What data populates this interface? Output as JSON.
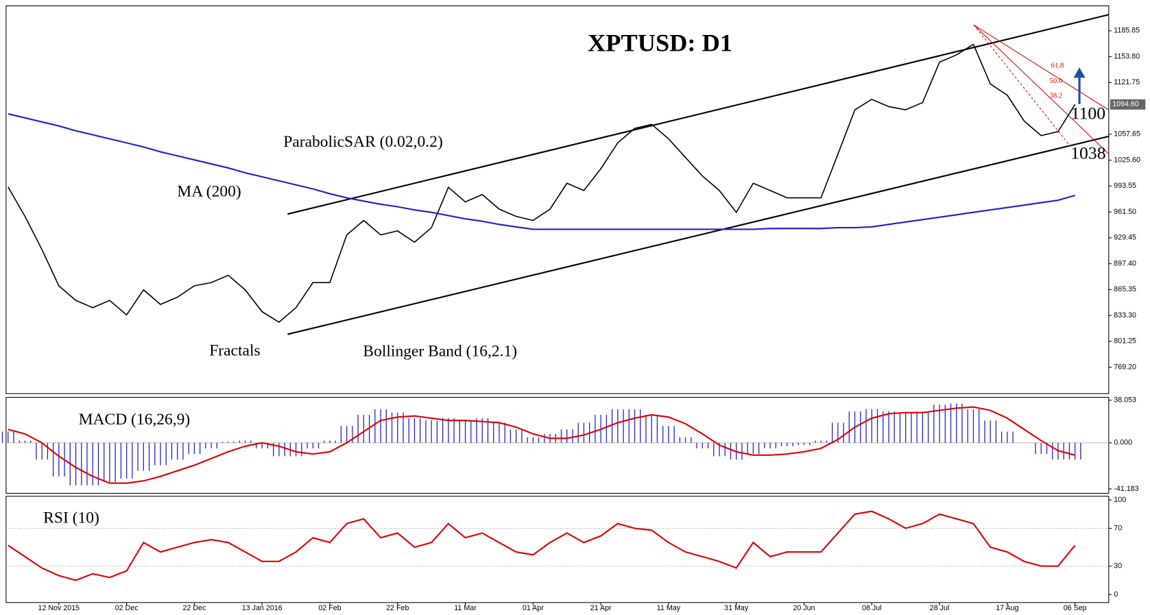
{
  "chart_data": [
    {
      "type": "line",
      "title": "XPTUSD: D1",
      "annotations": [
        "ParabolicSAR (0.02,0.2)",
        "MA (200)",
        "Fractals",
        "Bollinger Band (16,2.1)",
        "1100",
        "1038",
        "61.8",
        "50.0",
        "38.2"
      ],
      "last_price": {
        "value": 1094.6,
        "label": "1094.60"
      },
      "ylim": [
        736.5,
        1216.7
      ],
      "yticks": [
        1185.85,
        {
          "value": 1153.8,
          "label": "1153.80"
        },
        1121.75,
        1057.65,
        {
          "value": 1025.6,
          "label": "1025.60"
        },
        993.55,
        {
          "value": 961.5,
          "label": "961.50"
        },
        929.45,
        {
          "value": 897.4,
          "label": "897.40"
        },
        865.35,
        {
          "value": 833.3,
          "label": "833.30"
        },
        801.25,
        {
          "value": 769.2,
          "label": "769.20"
        }
      ],
      "series": [
        {
          "color": "#000000",
          "values": [
            992.5,
            956,
            915,
            870,
            852,
            843,
            852,
            834,
            865,
            847,
            856,
            870,
            874,
            883,
            865,
            838,
            825,
            843,
            874,
            874,
            933,
            951,
            933,
            938,
            924,
            942,
            992,
            974,
            983,
            965,
            956,
            951,
            965,
            997,
            988,
            1015,
            1047,
            1065,
            1070,
            1052,
            1029,
            1006,
            988,
            961,
            997,
            988,
            979,
            979,
            979,
            1033,
            1088,
            1101,
            1092,
            1088,
            1097,
            1147,
            1156,
            1169,
            1120,
            1106,
            1074,
            1056,
            1061,
            1094.6
          ]
        },
        {
          "name": "MA (200)",
          "color": "#1f1fd0",
          "values": [
            1083,
            1078,
            1073,
            1068,
            1062,
            1057,
            1052,
            1047,
            1042,
            1036,
            1031,
            1026,
            1021,
            1016,
            1010,
            1005,
            1000,
            995,
            990,
            984,
            979,
            975,
            971,
            968,
            964,
            961,
            957,
            953,
            950,
            946,
            943,
            940,
            940,
            940,
            940,
            940,
            940,
            940,
            940,
            940,
            940,
            940,
            940,
            940,
            940,
            941,
            941,
            941,
            941,
            942,
            942,
            943,
            946,
            949,
            952,
            955,
            958,
            961,
            964,
            967,
            970,
            973,
            976,
            982
          ]
        }
      ]
    },
    {
      "type": "combo",
      "title": "MACD (16,26,9)",
      "ylim": [
        -45.11,
        40.67
      ],
      "yticks": [
        38.053,
        {
          "value": 0,
          "label": "0.000"
        },
        -41.183
      ],
      "series": [
        {
          "color": "#2020d0",
          "values": [
            10,
            2,
            -15,
            -30,
            -38,
            -38,
            -35,
            -32,
            -25,
            -20,
            -15,
            -10,
            -5,
            1,
            2,
            -5,
            -12,
            -12,
            -5,
            2,
            15,
            25,
            30,
            27,
            22,
            20,
            22,
            20,
            22,
            18,
            12,
            5,
            8,
            12,
            18,
            25,
            30,
            30,
            25,
            15,
            5,
            -5,
            -12,
            -15,
            -10,
            -5,
            -3,
            -2,
            2,
            18,
            28,
            30,
            28,
            27,
            28,
            34,
            35,
            30,
            20,
            10,
            0,
            -10,
            -15,
            -15
          ]
        },
        {
          "color": "#e00000",
          "values": [
            12,
            8,
            0,
            -12,
            -22,
            -30,
            -36,
            -36,
            -34,
            -30,
            -25,
            -20,
            -14,
            -8,
            -3,
            0,
            -3,
            -8,
            -10,
            -8,
            0,
            10,
            20,
            23,
            24,
            22,
            20,
            20,
            19,
            18,
            14,
            8,
            4,
            4,
            7,
            12,
            18,
            22,
            25,
            23,
            17,
            8,
            -2,
            -8,
            -11,
            -11,
            -10,
            -8,
            -5,
            3,
            14,
            22,
            26,
            27,
            27,
            29,
            31,
            32,
            29,
            22,
            12,
            2,
            -7,
            -11
          ]
        }
      ]
    },
    {
      "type": "line",
      "title": "RSI (10)",
      "ylim": [
        -8.5,
        103.9
      ],
      "yticks": [
        100,
        70,
        30,
        0
      ],
      "categories": [
        null,
        null,
        null,
        "12 Nov 2015",
        null,
        null,
        null,
        "02 Dec",
        null,
        null,
        null,
        "22 Dec",
        null,
        null,
        null,
        "13 Jan 2016",
        null,
        null,
        null,
        "02 Feb",
        null,
        null,
        null,
        "22 Feb",
        null,
        null,
        null,
        "11 Mar",
        null,
        null,
        null,
        "01 Apr",
        null,
        null,
        null,
        "21 Apr",
        null,
        null,
        null,
        "11 May",
        null,
        null,
        null,
        "31 May",
        null,
        null,
        null,
        "20 Jun",
        null,
        null,
        null,
        "08 Jul",
        null,
        null,
        null,
        "28 Jul",
        null,
        null,
        null,
        "17 Aug",
        null,
        null,
        null,
        "06 Sep"
      ],
      "series": [
        {
          "color": "#e00000",
          "values": [
            52,
            40,
            28,
            20,
            15,
            22,
            18,
            25,
            55,
            45,
            50,
            55,
            58,
            55,
            45,
            35,
            35,
            45,
            60,
            55,
            75,
            80,
            60,
            65,
            50,
            55,
            75,
            60,
            65,
            55,
            45,
            42,
            55,
            65,
            55,
            62,
            75,
            70,
            68,
            55,
            45,
            40,
            35,
            28,
            55,
            40,
            45,
            45,
            45,
            65,
            85,
            88,
            80,
            70,
            75,
            85,
            80,
            75,
            50,
            45,
            35,
            30,
            30,
            52
          ]
        }
      ]
    }
  ]
}
